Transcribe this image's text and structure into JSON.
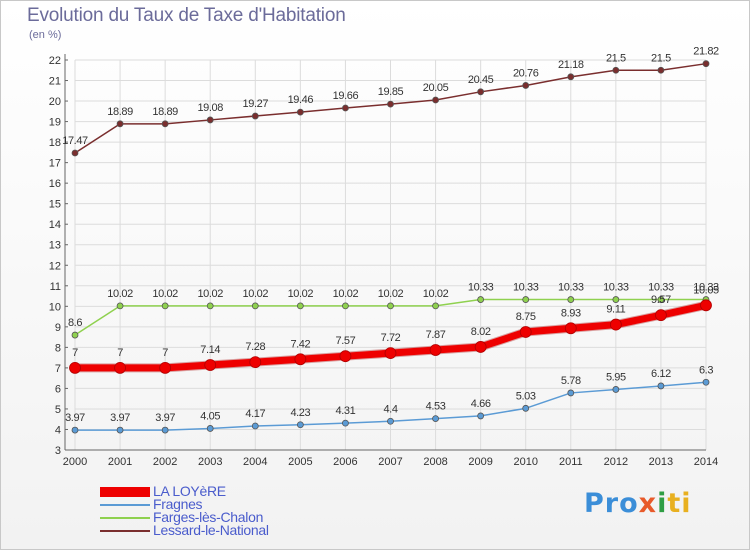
{
  "header": {
    "title": "Evolution du Taux de Taxe d'Habitation",
    "subtitle": "(en %)"
  },
  "brand": {
    "text": "Proxiti",
    "parts": [
      "Pro",
      "x",
      "i",
      "ti"
    ]
  },
  "chart_data": {
    "type": "line",
    "title": "Evolution du Taux de Taxe d'Habitation",
    "subtitle": "(en %)",
    "xlabel": "",
    "ylabel": "(en %)",
    "x": [
      "2000",
      "2001",
      "2002",
      "2003",
      "2004",
      "2005",
      "2006",
      "2007",
      "2008",
      "2009",
      "2010",
      "2011",
      "2012",
      "2013",
      "2014"
    ],
    "ylim": [
      3,
      22
    ],
    "yticks": [
      3,
      4,
      5,
      6,
      7,
      8,
      9,
      10,
      11,
      12,
      13,
      14,
      15,
      16,
      17,
      18,
      19,
      20,
      21,
      22
    ],
    "grid": true,
    "legend_position": "bottom-left",
    "series": [
      {
        "name": "LA LOYèRE",
        "color": "#ee0000",
        "emphasis": true,
        "values": [
          7,
          7,
          7,
          7.14,
          7.28,
          7.42,
          7.57,
          7.72,
          7.87,
          8.02,
          8.75,
          8.93,
          9.11,
          9.57,
          10.05
        ],
        "labels": [
          "7",
          "7",
          "7",
          "7.14",
          "7.28",
          "7.42",
          "7.57",
          "7.72",
          "7.87",
          "8.02",
          "8.75",
          "8.93",
          "9.11",
          "9.57",
          "10.05"
        ]
      },
      {
        "name": "Fragnes",
        "color": "#5b9bd5",
        "emphasis": false,
        "values": [
          3.97,
          3.97,
          3.97,
          4.05,
          4.17,
          4.23,
          4.31,
          4.4,
          4.53,
          4.66,
          5.03,
          5.78,
          5.95,
          6.12,
          6.3
        ],
        "labels": [
          "3.97",
          "3.97",
          "3.97",
          "4.05",
          "4.17",
          "4.23",
          "4.31",
          "4.4",
          "4.53",
          "4.66",
          "5.03",
          "5.78",
          "5.95",
          "6.12",
          "6.3"
        ]
      },
      {
        "name": "Farges-lès-Chalon",
        "color": "#8fd14f",
        "emphasis": false,
        "values": [
          8.6,
          10.02,
          10.02,
          10.02,
          10.02,
          10.02,
          10.02,
          10.02,
          10.02,
          10.33,
          10.33,
          10.33,
          10.33,
          10.33,
          10.33
        ],
        "labels": [
          "8.6",
          "10.02",
          "10.02",
          "10.02",
          "10.02",
          "10.02",
          "10.02",
          "10.02",
          "10.02",
          "10.33",
          "10.33",
          "10.33",
          "10.33",
          "10.33",
          "10.33"
        ]
      },
      {
        "name": "Lessard-le-National",
        "color": "#7a2e2e",
        "emphasis": false,
        "values": [
          17.47,
          18.89,
          18.89,
          19.08,
          19.27,
          19.46,
          19.66,
          19.85,
          20.05,
          20.45,
          20.76,
          21.18,
          21.5,
          21.5,
          21.82
        ],
        "labels": [
          "17.47",
          "18.89",
          "18.89",
          "19.08",
          "19.27",
          "19.46",
          "19.66",
          "19.85",
          "20.05",
          "20.45",
          "20.76",
          "21.18",
          "21.5",
          "21.5",
          "21.82"
        ]
      }
    ]
  }
}
